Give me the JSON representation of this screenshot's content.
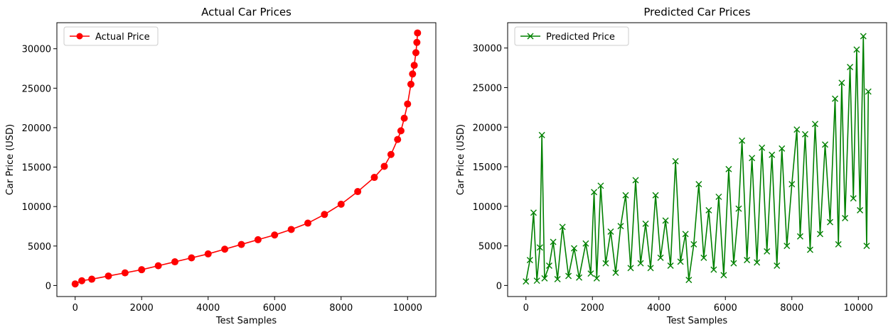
{
  "chart_data": [
    {
      "type": "line",
      "title": "Actual Car Prices",
      "xlabel": "Test Samples",
      "ylabel": "Car Price (USD)",
      "xlim": [
        -550,
        10850
      ],
      "ylim": [
        -1400,
        33300
      ],
      "xticks": [
        0,
        2000,
        4000,
        6000,
        8000,
        10000
      ],
      "yticks": [
        0,
        5000,
        10000,
        15000,
        20000,
        25000,
        30000
      ],
      "legend": "top-left",
      "series": [
        {
          "name": "Actual Price",
          "color": "#ff0000",
          "marker": "circle",
          "x": [
            0,
            200,
            500,
            1000,
            1500,
            2000,
            2500,
            3000,
            3500,
            4000,
            4500,
            5000,
            5500,
            6000,
            6500,
            7000,
            7500,
            8000,
            8500,
            9000,
            9300,
            9500,
            9700,
            9800,
            9900,
            10000,
            10100,
            10150,
            10200,
            10250,
            10280,
            10300
          ],
          "y": [
            200,
            600,
            800,
            1200,
            1600,
            2000,
            2500,
            3000,
            3500,
            4000,
            4600,
            5200,
            5800,
            6400,
            7100,
            7900,
            9000,
            10300,
            11900,
            13700,
            15100,
            16600,
            18500,
            19600,
            21200,
            23000,
            25500,
            26800,
            27900,
            29500,
            30800,
            32000
          ]
        }
      ]
    },
    {
      "type": "line",
      "title": "Predicted Car Prices",
      "xlabel": "Test Samples",
      "ylabel": "Car Price (USD)",
      "xlim": [
        -550,
        10850
      ],
      "ylim": [
        -1400,
        33200
      ],
      "xticks": [
        0,
        2000,
        4000,
        6000,
        8000,
        10000
      ],
      "yticks": [
        0,
        5000,
        10000,
        15000,
        20000,
        25000,
        30000
      ],
      "legend": "top-left",
      "series": [
        {
          "name": "Predicted Price",
          "color": "#008000",
          "marker": "x",
          "x": [
            0,
            120,
            230,
            330,
            420,
            480,
            560,
            700,
            820,
            950,
            1100,
            1280,
            1450,
            1600,
            1800,
            1950,
            2050,
            2130,
            2250,
            2400,
            2550,
            2700,
            2850,
            3000,
            3150,
            3300,
            3450,
            3600,
            3750,
            3900,
            4050,
            4200,
            4350,
            4500,
            4650,
            4800,
            4900,
            5050,
            5200,
            5350,
            5500,
            5650,
            5800,
            5950,
            6100,
            6250,
            6400,
            6500,
            6650,
            6800,
            6950,
            7100,
            7250,
            7400,
            7550,
            7700,
            7850,
            8000,
            8150,
            8250,
            8400,
            8550,
            8700,
            8850,
            9000,
            9150,
            9300,
            9400,
            9500,
            9600,
            9750,
            9850,
            9950,
            10050,
            10150,
            10250,
            10300
          ],
          "y": [
            500,
            3200,
            9200,
            600,
            4800,
            19000,
            900,
            2500,
            5500,
            800,
            7400,
            1200,
            4700,
            1000,
            5300,
            1500,
            11800,
            900,
            12600,
            2800,
            6800,
            1600,
            7500,
            11400,
            2200,
            13300,
            2800,
            7800,
            2200,
            11400,
            3500,
            8200,
            2500,
            15700,
            3000,
            6500,
            700,
            5200,
            12800,
            3500,
            9500,
            2000,
            11200,
            1300,
            14700,
            2800,
            9700,
            18300,
            3200,
            16100,
            2900,
            17400,
            4300,
            16500,
            2500,
            17300,
            5000,
            12800,
            19700,
            6200,
            19100,
            4500,
            20400,
            6500,
            17800,
            8000,
            23600,
            5200,
            25600,
            8500,
            27600,
            11000,
            29800,
            9500,
            31500,
            5000,
            24500
          ]
        }
      ]
    }
  ]
}
